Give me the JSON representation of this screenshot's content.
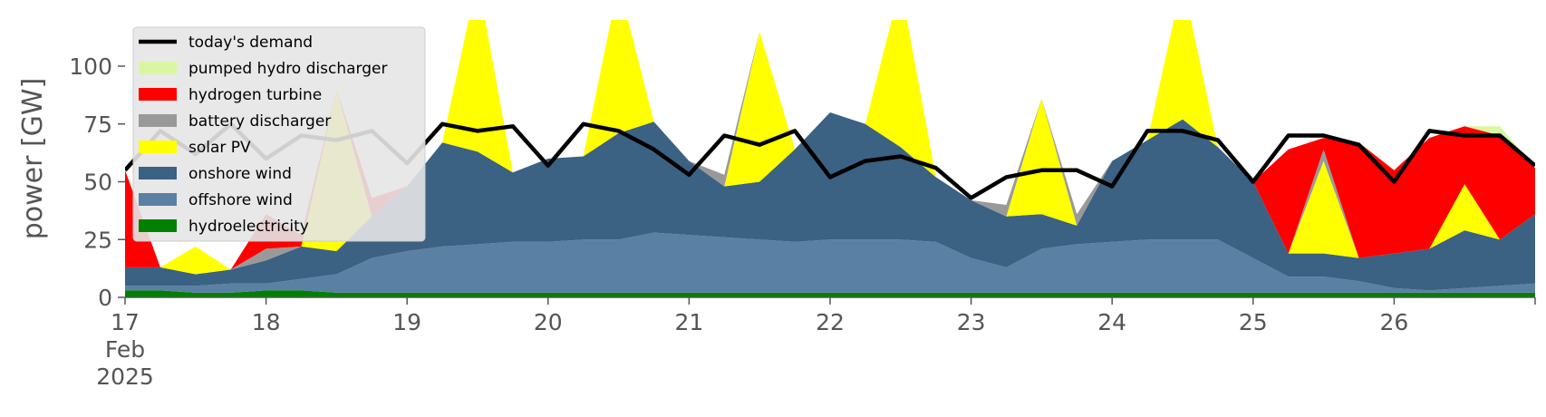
{
  "chart_data": {
    "type": "area",
    "stacked": true,
    "ylabel": "power [GW]",
    "xlabel": "",
    "ylim": [
      0,
      120
    ],
    "xlim": [
      "2025-02-17",
      "2025-02-27"
    ],
    "y_ticks": [
      0,
      25,
      50,
      75,
      100
    ],
    "x_ticks": [
      {
        "date": "2025-02-17",
        "label": "17",
        "sub1": "Feb",
        "sub2": "2025"
      },
      {
        "date": "2025-02-18",
        "label": "18"
      },
      {
        "date": "2025-02-19",
        "label": "19"
      },
      {
        "date": "2025-02-20",
        "label": "20"
      },
      {
        "date": "2025-02-21",
        "label": "21"
      },
      {
        "date": "2025-02-22",
        "label": "22"
      },
      {
        "date": "2025-02-23",
        "label": "23"
      },
      {
        "date": "2025-02-24",
        "label": "24"
      },
      {
        "date": "2025-02-25",
        "label": "25"
      },
      {
        "date": "2025-02-26",
        "label": "26"
      },
      {
        "date": "2025-02-27",
        "label": ""
      }
    ],
    "grid": false,
    "legend_position": "top-left",
    "x": [
      "2025-02-17 00:00",
      "2025-02-17 06:00",
      "2025-02-17 12:00",
      "2025-02-17 18:00",
      "2025-02-18 00:00",
      "2025-02-18 06:00",
      "2025-02-18 12:00",
      "2025-02-18 18:00",
      "2025-02-19 00:00",
      "2025-02-19 06:00",
      "2025-02-19 12:00",
      "2025-02-19 18:00",
      "2025-02-20 00:00",
      "2025-02-20 06:00",
      "2025-02-20 12:00",
      "2025-02-20 18:00",
      "2025-02-21 00:00",
      "2025-02-21 06:00",
      "2025-02-21 12:00",
      "2025-02-21 18:00",
      "2025-02-22 00:00",
      "2025-02-22 06:00",
      "2025-02-22 12:00",
      "2025-02-22 18:00",
      "2025-02-23 00:00",
      "2025-02-23 06:00",
      "2025-02-23 12:00",
      "2025-02-23 18:00",
      "2025-02-24 00:00",
      "2025-02-24 06:00",
      "2025-02-24 12:00",
      "2025-02-24 18:00",
      "2025-02-25 00:00",
      "2025-02-25 06:00",
      "2025-02-25 12:00",
      "2025-02-25 18:00",
      "2025-02-26 00:00",
      "2025-02-26 06:00",
      "2025-02-26 12:00",
      "2025-02-26 18:00",
      "2025-02-27 00:00"
    ],
    "stack_series": [
      {
        "name": "hydroelectricity",
        "color": "#008000",
        "values": [
          3,
          3,
          2,
          2,
          3,
          3,
          2,
          2,
          2,
          2,
          2,
          2,
          2,
          2,
          2,
          2,
          2,
          2,
          2,
          2,
          2,
          2,
          2,
          2,
          2,
          2,
          2,
          2,
          2,
          2,
          2,
          2,
          2,
          2,
          2,
          2,
          2,
          2,
          2,
          2,
          2
        ]
      },
      {
        "name": "offshore wind",
        "color": "#5a80a3",
        "values": [
          2,
          2,
          3,
          4,
          3,
          5,
          8,
          15,
          18,
          20,
          21,
          22,
          22,
          23,
          23,
          26,
          25,
          24,
          23,
          22,
          23,
          23,
          23,
          22,
          15,
          11,
          19,
          21,
          22,
          23,
          23,
          23,
          15,
          7,
          7,
          5,
          2,
          1,
          2,
          3,
          4
        ]
      },
      {
        "name": "onshore wind",
        "color": "#3b6183",
        "values": [
          8,
          8,
          5,
          6,
          10,
          14,
          10,
          18,
          28,
          45,
          40,
          30,
          36,
          36,
          46,
          48,
          32,
          22,
          25,
          40,
          55,
          50,
          40,
          28,
          25,
          22,
          15,
          8,
          35,
          43,
          52,
          40,
          33,
          10,
          10,
          10,
          15,
          18,
          25,
          20,
          30
        ]
      },
      {
        "name": "solar PV",
        "color": "#ffff00",
        "values": [
          0,
          0,
          12,
          0,
          0,
          0,
          70,
          0,
          0,
          0,
          75,
          0,
          0,
          0,
          65,
          0,
          0,
          0,
          65,
          0,
          0,
          0,
          70,
          0,
          0,
          0,
          50,
          0,
          0,
          0,
          60,
          0,
          0,
          0,
          40,
          0,
          0,
          0,
          20,
          0,
          0
        ]
      },
      {
        "name": "battery discharger",
        "color": "#999999",
        "values": [
          0,
          0,
          0,
          0,
          5,
          0,
          0,
          0,
          0,
          0,
          0,
          0,
          0,
          0,
          0,
          0,
          0,
          5,
          0,
          0,
          0,
          0,
          0,
          0,
          0,
          5,
          0,
          5,
          0,
          0,
          0,
          0,
          0,
          0,
          5,
          0,
          0,
          0,
          0,
          0,
          0
        ]
      },
      {
        "name": "hydrogen turbine",
        "color": "#ff0000",
        "values": [
          42,
          0,
          0,
          0,
          15,
          5,
          0,
          8,
          0,
          0,
          0,
          0,
          0,
          0,
          0,
          0,
          0,
          0,
          0,
          0,
          0,
          0,
          0,
          0,
          0,
          0,
          0,
          0,
          0,
          0,
          0,
          0,
          0,
          45,
          5,
          50,
          36,
          48,
          25,
          45,
          20
        ]
      },
      {
        "name": "pumped hydro discharger",
        "color": "#d8f7a0",
        "values": [
          0,
          0,
          0,
          0,
          0,
          0,
          0,
          0,
          0,
          0,
          0,
          0,
          0,
          0,
          0,
          0,
          0,
          0,
          0,
          0,
          0,
          0,
          0,
          0,
          0,
          0,
          0,
          0,
          0,
          0,
          0,
          0,
          0,
          0,
          0,
          0,
          0,
          0,
          0,
          4,
          0
        ]
      }
    ],
    "demand_series": {
      "name": "today's demand",
      "color": "#000000",
      "values": [
        55,
        72,
        62,
        75,
        60,
        70,
        68,
        72,
        58,
        75,
        72,
        74,
        57,
        75,
        72,
        64,
        53,
        70,
        66,
        72,
        52,
        59,
        61,
        56,
        43,
        52,
        55,
        55,
        48,
        72,
        72,
        68,
        50,
        70,
        70,
        66,
        50,
        72,
        70,
        70,
        57
      ]
    },
    "legend": [
      "today's demand",
      "pumped hydro discharger",
      "hydrogen turbine",
      "battery discharger",
      "solar PV",
      "onshore wind",
      "offshore wind",
      "hydroelectricity"
    ]
  }
}
